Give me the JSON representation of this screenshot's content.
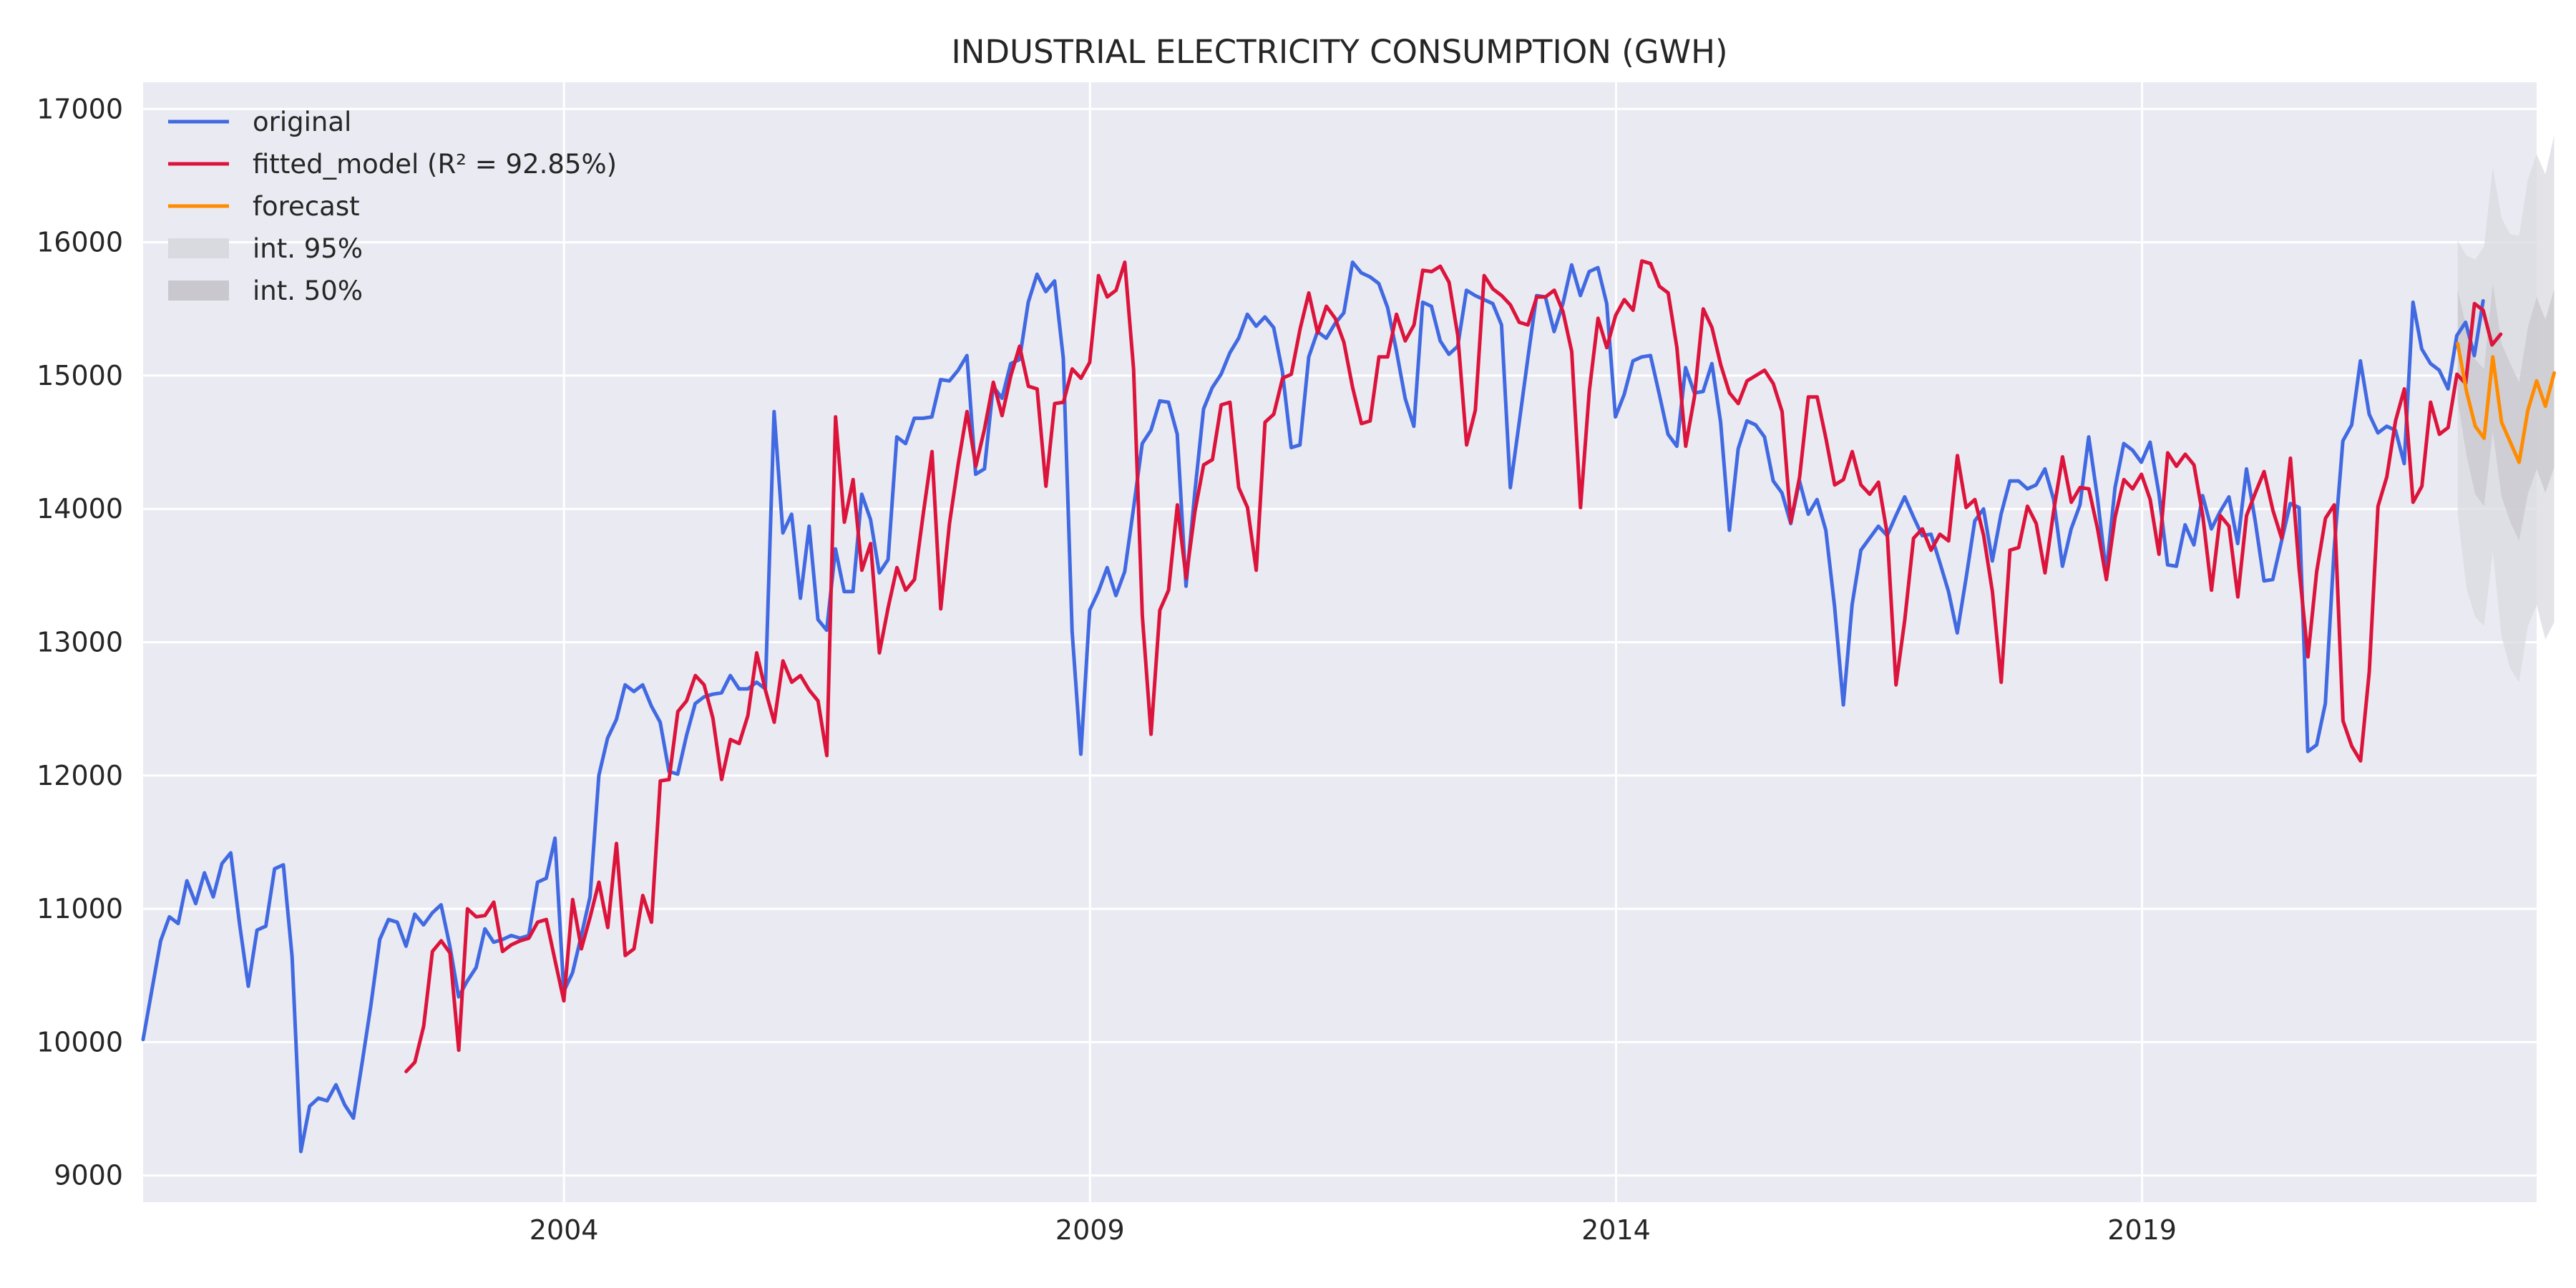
{
  "chart_data": {
    "type": "line",
    "title": "INDUSTRIAL ELECTRICITY CONSUMPTION (GWH)",
    "xlabel": "",
    "ylabel": "",
    "x_range": [
      2000,
      2022.75
    ],
    "ylim": [
      8800,
      17200
    ],
    "x_ticks": [
      {
        "value": 2004,
        "label": "2004"
      },
      {
        "value": 2009,
        "label": "2009"
      },
      {
        "value": 2014,
        "label": "2014"
      },
      {
        "value": 2019,
        "label": "2019"
      }
    ],
    "y_ticks": [
      {
        "value": 9000,
        "label": "9000"
      },
      {
        "value": 10000,
        "label": "10000"
      },
      {
        "value": 11000,
        "label": "11000"
      },
      {
        "value": 12000,
        "label": "12000"
      },
      {
        "value": 13000,
        "label": "13000"
      },
      {
        "value": 14000,
        "label": "14000"
      },
      {
        "value": 15000,
        "label": "15000"
      },
      {
        "value": 16000,
        "label": "16000"
      },
      {
        "value": 17000,
        "label": "17000"
      }
    ],
    "grid": true,
    "legend_position": "top-left",
    "legend": [
      {
        "label": "original",
        "kind": "line",
        "color": "#4169e1"
      },
      {
        "label": "fitted_model (R² = 92.85%)",
        "kind": "line",
        "color": "#dc143c"
      },
      {
        "label": "forecast",
        "kind": "line",
        "color": "#ff8c00"
      },
      {
        "label": "int. 95%",
        "kind": "band",
        "color": "#d9d9e0"
      },
      {
        "label": "int. 50%",
        "kind": "band",
        "color": "#c8c8ce"
      }
    ],
    "series": [
      {
        "name": "original",
        "color": "#4169e1",
        "start": 2000.0,
        "step": 0.0833,
        "values": [
          10020,
          10390,
          10760,
          10940,
          10890,
          11210,
          11040,
          11270,
          11090,
          11340,
          11420,
          10890,
          10420,
          10840,
          10870,
          11300,
          11330,
          10640,
          9180,
          9520,
          9580,
          9560,
          9680,
          9530,
          9430,
          9850,
          10280,
          10770,
          10920,
          10900,
          10720,
          10960,
          10880,
          10970,
          11030,
          10720,
          10340,
          10460,
          10560,
          10850,
          10750,
          10770,
          10800,
          10780,
          10800,
          11200,
          11230,
          11530,
          10380,
          10520,
          10800,
          11090,
          12000,
          12280,
          12420,
          12680,
          12630,
          12680,
          12520,
          12400,
          12030,
          12010,
          12300,
          12540,
          12590,
          12610,
          12620,
          12750,
          12650,
          12650,
          12700,
          12650,
          14730,
          13820,
          13960,
          13330,
          13870,
          13170,
          13090,
          13700,
          13380,
          13380,
          14110,
          13920,
          13520,
          13620,
          14540,
          14490,
          14680,
          14680,
          14690,
          14970,
          14960,
          15040,
          15150,
          14260,
          14300,
          14920,
          14830,
          15090,
          15120,
          15550,
          15760,
          15630,
          15710,
          15130,
          13080,
          12160,
          13240,
          13380,
          13560,
          13350,
          13530,
          14000,
          14490,
          14590,
          14810,
          14800,
          14560,
          13420,
          14120,
          14750,
          14910,
          15010,
          15170,
          15280,
          15460,
          15370,
          15440,
          15360,
          15030,
          14460,
          14480,
          15140,
          15330,
          15280,
          15390,
          15470,
          15850,
          15770,
          15740,
          15690,
          15510,
          15190,
          14830,
          14620,
          15550,
          15520,
          15260,
          15160,
          15220,
          15640,
          15600,
          15570,
          15540,
          15380,
          14160,
          14640,
          15130,
          15600,
          15590,
          15330,
          15540,
          15830,
          15600,
          15780,
          15810,
          15540,
          14690,
          14860,
          15110,
          15140,
          15150,
          14860,
          14560,
          14470,
          15060,
          14870,
          14880,
          15090,
          14650,
          13840,
          14450,
          14660,
          14630,
          14540,
          14210,
          14120,
          13890,
          14210,
          13960,
          14070,
          13840,
          13270,
          12530,
          13280,
          13690,
          13780,
          13870,
          13800,
          13950,
          14090,
          13940,
          13800,
          13810,
          13600,
          13380,
          13070,
          13480,
          13910,
          14000,
          13610,
          13960,
          14210,
          14210,
          14150,
          14180,
          14300,
          14070,
          13570,
          13850,
          14030,
          14540,
          14080,
          13520,
          14160,
          14490,
          14440,
          14350,
          14500,
          14120,
          13580,
          13570,
          13880,
          13730,
          14100,
          13850,
          13980,
          14090,
          13740,
          14300,
          13910,
          13460,
          13470,
          13760,
          14040,
          14010,
          12180,
          12230,
          12540,
          13700,
          14510,
          14630,
          15110,
          14710,
          14570,
          14620,
          14590,
          14340,
          15550,
          15200,
          15090,
          15040,
          14900,
          15300,
          15400,
          15150,
          15560
        ]
      },
      {
        "name": "fitted_model (R² = 92.85%)",
        "color": "#dc143c",
        "start": 2002.5,
        "step": 0.0833,
        "values": [
          9780,
          9850,
          10120,
          10680,
          10760,
          10670,
          9940,
          11000,
          10940,
          10950,
          11050,
          10680,
          10730,
          10760,
          10780,
          10900,
          10920,
          10610,
          10310,
          11070,
          10700,
          10940,
          11200,
          10860,
          11490,
          10650,
          10700,
          11100,
          10900,
          11960,
          11970,
          12480,
          12560,
          12750,
          12680,
          12430,
          11970,
          12270,
          12240,
          12450,
          12920,
          12640,
          12400,
          12860,
          12700,
          12750,
          12640,
          12560,
          12150,
          14690,
          13900,
          14220,
          13540,
          13740,
          12920,
          13260,
          13560,
          13390,
          13470,
          13960,
          14430,
          13250,
          13890,
          14340,
          14730,
          14320,
          14600,
          14950,
          14700,
          15000,
          15220,
          14920,
          14900,
          14170,
          14790,
          14800,
          15050,
          14980,
          15100,
          15750,
          15590,
          15640,
          15850,
          15050,
          13200,
          12310,
          13240,
          13390,
          14030,
          13480,
          13980,
          14330,
          14370,
          14780,
          14800,
          14160,
          14010,
          13540,
          14650,
          14710,
          14980,
          15010,
          15350,
          15620,
          15320,
          15520,
          15430,
          15250,
          14910,
          14640,
          14660,
          15140,
          15140,
          15460,
          15260,
          15380,
          15790,
          15780,
          15820,
          15700,
          15300,
          14480,
          14740,
          15750,
          15650,
          15600,
          15530,
          15400,
          15380,
          15590,
          15590,
          15640,
          15480,
          15180,
          14010,
          14880,
          15430,
          15210,
          15450,
          15570,
          15490,
          15860,
          15840,
          15670,
          15620,
          15210,
          14470,
          14840,
          15500,
          15360,
          15080,
          14870,
          14790,
          14960,
          15000,
          15040,
          14940,
          14730,
          13900,
          14240,
          14840,
          14840,
          14530,
          14180,
          14220,
          14430,
          14180,
          14110,
          14200,
          13810,
          12680,
          13170,
          13780,
          13850,
          13690,
          13810,
          13760,
          14400,
          14010,
          14070,
          13800,
          13380,
          12700,
          13690,
          13710,
          14020,
          13890,
          13520,
          13990,
          14390,
          14050,
          14160,
          14150,
          13850,
          13470,
          13940,
          14220,
          14150,
          14260,
          14070,
          13660,
          14420,
          14320,
          14410,
          14330,
          13950,
          13390,
          13950,
          13870,
          13340,
          13950,
          14120,
          14280,
          13990,
          13780,
          14380,
          13550,
          12890,
          13530,
          13930,
          14030,
          12410,
          12220,
          12110,
          12780,
          14020,
          14240,
          14660,
          14900,
          14050,
          14170,
          14800,
          14560,
          14610,
          15010,
          14940,
          15540,
          15490,
          15230,
          15310
        ]
      },
      {
        "name": "forecast",
        "color": "#ff8c00",
        "start": 2022.0,
        "step": 0.0833,
        "values": [
          15240,
          14880,
          14620,
          14530,
          15140,
          14650,
          14500,
          14350,
          14740,
          14960,
          14770,
          15020
        ]
      }
    ],
    "intervals": [
      {
        "name": "int. 95%",
        "start": 2022.0,
        "step": 0.0833,
        "lower": [
          13960,
          13400,
          13190,
          13120,
          13680,
          13040,
          12800,
          12700,
          13120,
          13280,
          13020,
          13150
        ],
        "upper": [
          16010,
          15900,
          15870,
          15970,
          16560,
          16180,
          16060,
          16050,
          16470,
          16660,
          16510,
          16800
        ]
      },
      {
        "name": "int. 50%",
        "start": 2022.0,
        "step": 0.0833,
        "lower": [
          14810,
          14400,
          14110,
          14020,
          14580,
          14090,
          13900,
          13760,
          14110,
          14300,
          14120,
          14310
        ],
        "upper": [
          15640,
          15360,
          15120,
          15050,
          15690,
          15240,
          15090,
          14950,
          15360,
          15590,
          15420,
          15650
        ]
      }
    ]
  }
}
